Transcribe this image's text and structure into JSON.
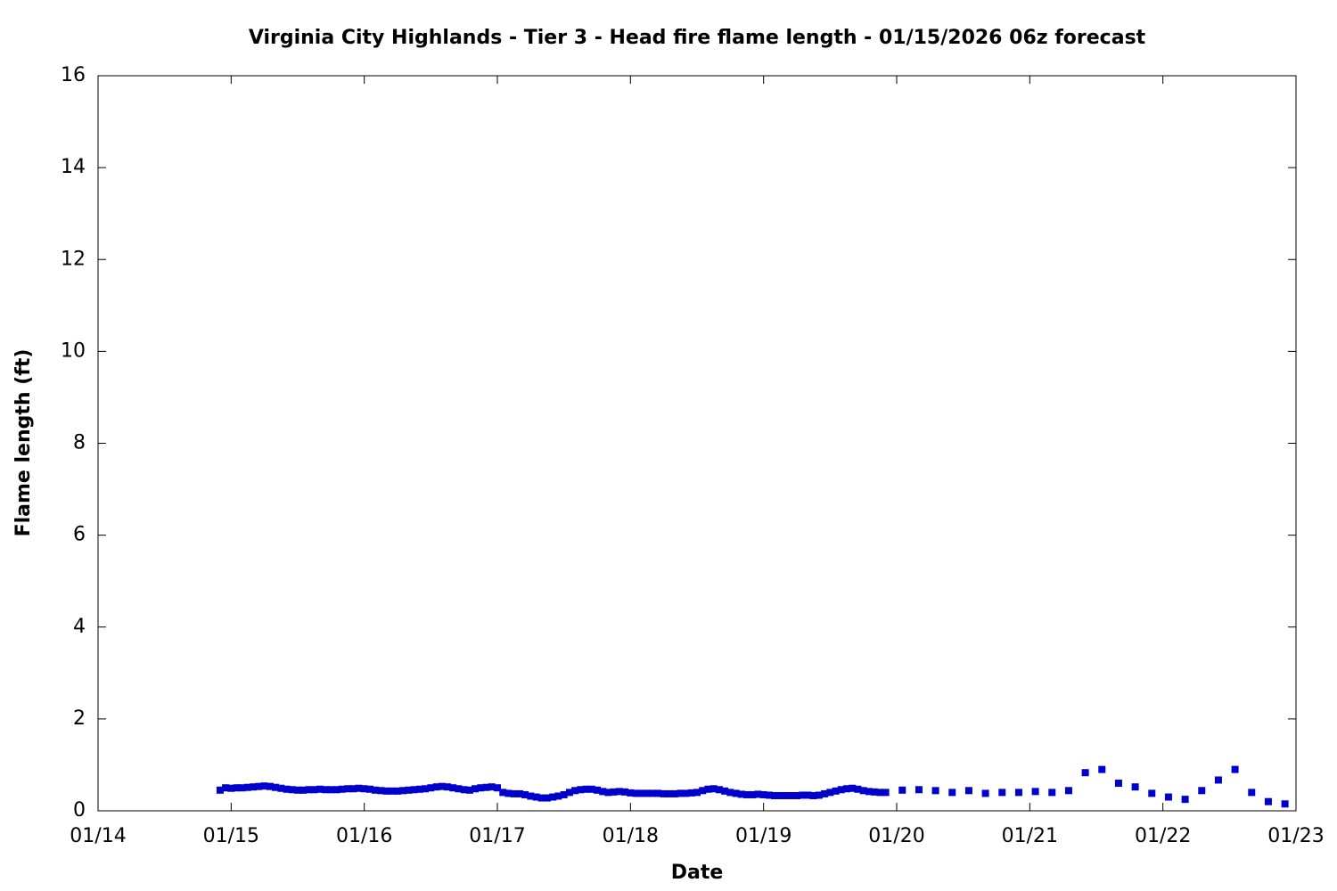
{
  "chart_data": {
    "type": "scatter",
    "title": "Virginia City Highlands - Tier 3 - Head fire flame length - 01/15/2026 06z forecast",
    "x_label": "Date",
    "y_label": "Flame length (ft)",
    "color": "#0000cc",
    "xlim": [
      14,
      23
    ],
    "xticks": [
      {
        "value": 14,
        "label": "01/14"
      },
      {
        "value": 15,
        "label": "01/15"
      },
      {
        "value": 16,
        "label": "01/16"
      },
      {
        "value": 17,
        "label": "01/17"
      },
      {
        "value": 18,
        "label": "01/18"
      },
      {
        "value": 19,
        "label": "01/19"
      },
      {
        "value": 20,
        "label": "01/20"
      },
      {
        "value": 21,
        "label": "01/21"
      },
      {
        "value": 22,
        "label": "01/22"
      },
      {
        "value": 23,
        "label": "01/23"
      }
    ],
    "ylim": [
      0,
      16
    ],
    "yticks": [
      0,
      2,
      4,
      6,
      8,
      10,
      12,
      14,
      16
    ],
    "x": [
      14.917,
      14.958,
      15.0,
      15.042,
      15.083,
      15.125,
      15.167,
      15.208,
      15.25,
      15.292,
      15.333,
      15.375,
      15.417,
      15.458,
      15.5,
      15.542,
      15.583,
      15.625,
      15.667,
      15.708,
      15.75,
      15.792,
      15.833,
      15.875,
      15.917,
      15.958,
      16.0,
      16.042,
      16.083,
      16.125,
      16.167,
      16.208,
      16.25,
      16.292,
      16.333,
      16.375,
      16.417,
      16.458,
      16.5,
      16.542,
      16.583,
      16.625,
      16.667,
      16.708,
      16.75,
      16.792,
      16.833,
      16.875,
      16.917,
      16.958,
      17.0,
      17.042,
      17.083,
      17.125,
      17.167,
      17.208,
      17.25,
      17.292,
      17.333,
      17.375,
      17.417,
      17.458,
      17.5,
      17.542,
      17.583,
      17.625,
      17.667,
      17.708,
      17.75,
      17.792,
      17.833,
      17.875,
      17.917,
      17.958,
      18.0,
      18.042,
      18.083,
      18.125,
      18.167,
      18.208,
      18.25,
      18.292,
      18.333,
      18.375,
      18.417,
      18.458,
      18.5,
      18.542,
      18.583,
      18.625,
      18.667,
      18.708,
      18.75,
      18.792,
      18.833,
      18.875,
      18.917,
      18.958,
      19.0,
      19.042,
      19.083,
      19.125,
      19.167,
      19.208,
      19.25,
      19.292,
      19.333,
      19.375,
      19.417,
      19.458,
      19.5,
      19.542,
      19.583,
      19.625,
      19.667,
      19.708,
      19.75,
      19.792,
      19.833,
      19.875,
      19.917,
      20.042,
      20.167,
      20.292,
      20.417,
      20.542,
      20.667,
      20.792,
      20.917,
      21.042,
      21.167,
      21.292,
      21.417,
      21.542,
      21.667,
      21.792,
      21.917,
      22.042,
      22.167,
      22.292,
      22.417,
      22.542,
      22.667,
      22.792,
      22.917
    ],
    "values": [
      0.45,
      0.5,
      0.49,
      0.5,
      0.5,
      0.51,
      0.52,
      0.53,
      0.54,
      0.53,
      0.51,
      0.49,
      0.47,
      0.46,
      0.45,
      0.45,
      0.46,
      0.46,
      0.47,
      0.46,
      0.46,
      0.46,
      0.47,
      0.48,
      0.48,
      0.49,
      0.48,
      0.47,
      0.45,
      0.44,
      0.43,
      0.43,
      0.43,
      0.44,
      0.45,
      0.46,
      0.47,
      0.48,
      0.5,
      0.52,
      0.53,
      0.52,
      0.5,
      0.48,
      0.46,
      0.45,
      0.48,
      0.5,
      0.51,
      0.52,
      0.5,
      0.4,
      0.38,
      0.37,
      0.37,
      0.35,
      0.32,
      0.3,
      0.28,
      0.28,
      0.3,
      0.32,
      0.35,
      0.4,
      0.44,
      0.46,
      0.47,
      0.47,
      0.45,
      0.42,
      0.4,
      0.41,
      0.42,
      0.41,
      0.39,
      0.38,
      0.38,
      0.38,
      0.38,
      0.38,
      0.37,
      0.37,
      0.37,
      0.38,
      0.38,
      0.39,
      0.4,
      0.44,
      0.47,
      0.48,
      0.46,
      0.43,
      0.4,
      0.38,
      0.36,
      0.35,
      0.35,
      0.36,
      0.35,
      0.34,
      0.33,
      0.33,
      0.33,
      0.33,
      0.33,
      0.34,
      0.34,
      0.33,
      0.34,
      0.37,
      0.4,
      0.43,
      0.46,
      0.48,
      0.49,
      0.47,
      0.44,
      0.42,
      0.41,
      0.4,
      0.4,
      0.45,
      0.46,
      0.44,
      0.4,
      0.44,
      0.38,
      0.4,
      0.4,
      0.42,
      0.4,
      0.44,
      0.83,
      0.9,
      0.6,
      0.52,
      0.38,
      0.3,
      0.25,
      0.44,
      0.67,
      0.9,
      0.4,
      0.2,
      0.15
    ]
  }
}
